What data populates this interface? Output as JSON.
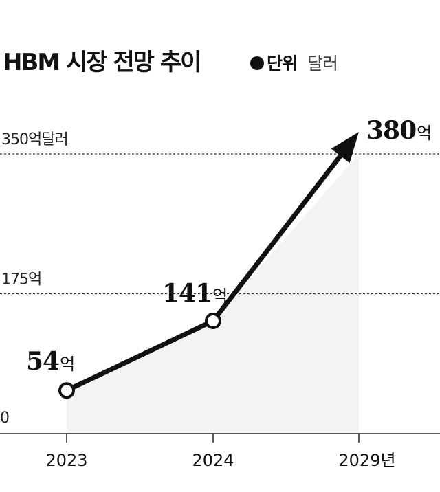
{
  "chart_data": {
    "type": "line",
    "title": "HBM 시장 전망 추이",
    "unit_label": "단위",
    "unit_value": "달러",
    "categories": [
      "2023",
      "2024",
      "2029년"
    ],
    "values": [
      54,
      141,
      380
    ],
    "value_labels": [
      {
        "number": "54",
        "suffix": "억"
      },
      {
        "number": "141",
        "suffix": "억"
      },
      {
        "number": "380",
        "suffix": "억"
      }
    ],
    "reference_lines": [
      {
        "value": 350,
        "label": "350억달러"
      },
      {
        "value": 175,
        "label": "175억"
      }
    ],
    "baseline_label": "0",
    "ylim": [
      0,
      350
    ],
    "grid": false,
    "colors": {
      "line": "#111111",
      "area": "#f3f3f3",
      "reference": "#333333",
      "marker_fill": "#ffffff"
    }
  }
}
